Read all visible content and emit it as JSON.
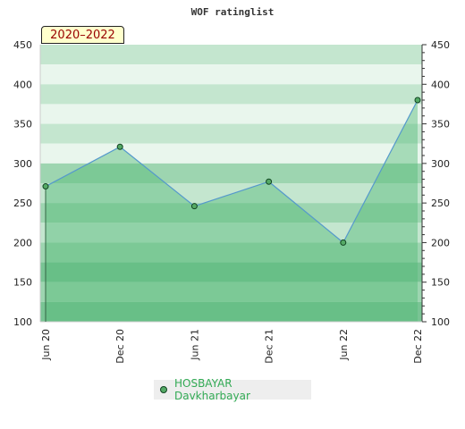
{
  "chart_data": {
    "type": "line",
    "title": "WOF ratinglist",
    "period_badge": "2020–2022",
    "x": [
      "Jun 20",
      "Dec 20",
      "Jun 21",
      "Dec 21",
      "Jun 22",
      "Dec 22"
    ],
    "series": [
      {
        "name": "HOSBAYAR Davkharbayar",
        "values": [
          271,
          321,
          246,
          277,
          200,
          380
        ]
      }
    ],
    "y_ticks": [
      100,
      150,
      200,
      250,
      300,
      350,
      400,
      450
    ],
    "ylim": [
      100,
      450
    ],
    "grid": false,
    "legend_position": "bottom",
    "colors": {
      "line": "#5599cc",
      "area": "#55bb77",
      "marker_fill": "#55aa66",
      "marker_stroke": "#114422",
      "band_dark": "#79c494",
      "band_mid": "#9dd5b0",
      "band_light": "#c4e6cf",
      "band_pale": "#e9f6ed"
    }
  }
}
